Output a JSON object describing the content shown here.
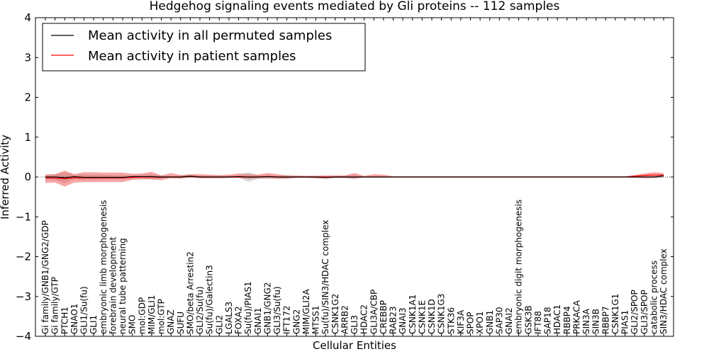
{
  "chart_data": {
    "type": "line",
    "title": "Hedgehog signaling events mediated by Gli proteins -- 112 samples",
    "xlabel": "Cellular Entities",
    "ylabel": "Inferred Activity",
    "ylim": [
      -4,
      4
    ],
    "yticks": [
      -4,
      -3,
      -2,
      -1,
      0,
      1,
      2,
      3,
      4
    ],
    "ytick_labels": [
      "−4",
      "−3",
      "−2",
      "−1",
      "0",
      "1",
      "2",
      "3",
      "4"
    ],
    "legend_position": "top-left",
    "categories": [
      "Gi family/GNB1/GNG2/GDP",
      "Gi family/GTP",
      "PTCH1",
      "GNAO1",
      "GLI1/Su(fu)",
      "GLI1",
      "embryonic limb morphogenesis",
      "forebrain development",
      "neural tube patterning",
      "SMO",
      "mol:GDP",
      "MIM/GLI1",
      "mol:GTP",
      "GNAZ",
      "SUFU",
      "SMO/beta Arrestin2",
      "GLI2/Su(fu)",
      "Su(fu)/Galectin3",
      "GLI2",
      "LGALS3",
      "FOXA2",
      "Su(fu)/PIAS1",
      "GNAI1",
      "GNB1/GNG2",
      "GLI3/Su(fu)",
      "IFT172",
      "GNG2",
      "MIM/GLI2A",
      "MTSS1",
      "Su(fu)/SIN3/HDAC complex",
      "CSNK1G2",
      "ARRB2",
      "GLI3",
      "HDAC2",
      "GLI3A/CBP",
      "CREBBP",
      "RAB23",
      "GNAI3",
      "CSNK1A1",
      "CSNK1E",
      "CSNK1D",
      "CSNK1G3",
      "STK36",
      "KIF3A",
      "SPOP",
      "XPO1",
      "GNB1",
      "SAP30",
      "GNAI2",
      "embryonic digit morphogenesis",
      "GSK3B",
      "IFT88",
      "SAP18",
      "HDAC1",
      "RBBP4",
      "PRKACA",
      "SIN3A",
      "SIN3B",
      "RBBP7",
      "CSNK1G1",
      "PIAS1",
      "GLI2/SPOP",
      "GLI3/SPOP",
      "catabolic process",
      "SIN3/HDAC complex"
    ],
    "series": [
      {
        "name": "Mean activity in all permuted samples",
        "color": "#000000",
        "values": [
          0.0,
          0.0,
          -0.02,
          0.01,
          -0.01,
          -0.01,
          -0.01,
          -0.01,
          -0.01,
          0.01,
          0.01,
          0.01,
          0.0,
          0.0,
          0.0,
          0.02,
          0.0,
          0.0,
          0.0,
          0.0,
          0.01,
          0.0,
          0.0,
          0.01,
          0.0,
          0.0,
          0.0,
          0.0,
          0.0,
          -0.01,
          0.0,
          0.0,
          0.0,
          0.0,
          0.0,
          0.0,
          0.0,
          0.0,
          0.0,
          0.0,
          0.0,
          0.0,
          0.0,
          0.0,
          0.0,
          0.0,
          0.0,
          0.0,
          0.0,
          0.0,
          0.0,
          0.0,
          0.0,
          0.0,
          0.0,
          0.0,
          0.0,
          0.0,
          0.0,
          0.0,
          0.0,
          0.0,
          0.0,
          0.0,
          0.03
        ],
        "band_low": [
          -0.08,
          -0.08,
          -0.15,
          -0.06,
          -0.08,
          -0.07,
          -0.07,
          -0.06,
          -0.06,
          -0.04,
          -0.04,
          -0.06,
          -0.03,
          -0.02,
          -0.03,
          -0.01,
          -0.03,
          -0.03,
          -0.03,
          -0.03,
          -0.02,
          -0.12,
          -0.05,
          -0.04,
          -0.02,
          -0.06,
          -0.02,
          -0.02,
          -0.03,
          -0.06,
          -0.03,
          -0.03,
          -0.06,
          -0.01,
          -0.02,
          -0.02,
          -0.01,
          -0.01,
          -0.01,
          -0.01,
          -0.01,
          -0.01,
          -0.01,
          -0.01,
          -0.01,
          -0.01,
          -0.01,
          -0.01,
          -0.01,
          -0.01,
          -0.01,
          -0.01,
          -0.01,
          -0.01,
          -0.01,
          -0.01,
          -0.01,
          -0.01,
          -0.01,
          -0.01,
          -0.01,
          -0.01,
          -0.02,
          -0.03,
          -0.01
        ],
        "band_high": [
          0.06,
          0.07,
          0.12,
          0.06,
          0.07,
          0.06,
          0.06,
          0.05,
          0.05,
          0.05,
          0.06,
          0.08,
          0.04,
          0.03,
          0.04,
          0.05,
          0.04,
          0.03,
          0.03,
          0.03,
          0.05,
          0.12,
          0.05,
          0.06,
          0.03,
          0.05,
          0.02,
          0.02,
          0.03,
          0.03,
          0.03,
          0.03,
          0.06,
          0.01,
          0.02,
          0.02,
          0.01,
          0.01,
          0.01,
          0.01,
          0.01,
          0.01,
          0.01,
          0.01,
          0.01,
          0.01,
          0.01,
          0.01,
          0.01,
          0.01,
          0.01,
          0.01,
          0.01,
          0.01,
          0.01,
          0.01,
          0.01,
          0.01,
          0.01,
          0.01,
          0.01,
          0.01,
          0.02,
          0.03,
          0.04
        ]
      },
      {
        "name": "Mean activity in patient samples",
        "color": "#ff0000",
        "values": [
          -0.02,
          -0.03,
          -0.04,
          -0.02,
          -0.02,
          -0.02,
          -0.02,
          -0.02,
          -0.02,
          -0.01,
          0.0,
          0.0,
          -0.01,
          0.0,
          0.0,
          0.01,
          0.0,
          0.0,
          0.0,
          0.0,
          0.0,
          0.0,
          0.0,
          0.01,
          0.0,
          0.0,
          0.0,
          0.0,
          0.0,
          0.0,
          0.0,
          0.0,
          0.0,
          0.0,
          0.0,
          0.0,
          0.0,
          0.0,
          0.0,
          0.0,
          0.0,
          0.0,
          0.0,
          0.0,
          0.0,
          0.0,
          0.0,
          0.0,
          0.0,
          0.0,
          0.0,
          0.0,
          0.0,
          0.0,
          0.0,
          0.0,
          0.0,
          0.0,
          0.0,
          0.0,
          0.0,
          0.02,
          0.04,
          0.05,
          0.05
        ],
        "band_low": [
          -0.15,
          -0.14,
          -0.24,
          -0.14,
          -0.13,
          -0.13,
          -0.13,
          -0.13,
          -0.13,
          -0.07,
          -0.06,
          -0.06,
          -0.08,
          -0.03,
          -0.04,
          -0.01,
          -0.03,
          -0.03,
          -0.03,
          -0.02,
          -0.02,
          -0.05,
          -0.03,
          -0.03,
          -0.05,
          -0.03,
          -0.02,
          -0.02,
          -0.03,
          -0.03,
          -0.02,
          -0.02,
          -0.03,
          -0.01,
          -0.01,
          -0.01,
          -0.01,
          -0.01,
          -0.01,
          -0.01,
          -0.01,
          -0.01,
          -0.01,
          -0.01,
          -0.01,
          -0.01,
          -0.01,
          -0.01,
          -0.01,
          -0.01,
          -0.01,
          -0.01,
          -0.01,
          -0.01,
          -0.01,
          -0.01,
          -0.01,
          -0.01,
          -0.01,
          -0.01,
          -0.01,
          -0.02,
          -0.03,
          -0.02,
          0.0
        ],
        "band_high": [
          0.06,
          0.07,
          0.16,
          0.07,
          0.12,
          0.12,
          0.11,
          0.11,
          0.11,
          0.08,
          0.09,
          0.13,
          0.04,
          0.1,
          0.05,
          0.07,
          0.07,
          0.06,
          0.05,
          0.06,
          0.09,
          0.07,
          0.06,
          0.1,
          0.07,
          0.04,
          0.04,
          0.03,
          0.03,
          0.04,
          0.04,
          0.04,
          0.1,
          0.03,
          0.07,
          0.06,
          0.02,
          0.02,
          0.02,
          0.02,
          0.02,
          0.02,
          0.02,
          0.02,
          0.02,
          0.02,
          0.02,
          0.02,
          0.02,
          0.02,
          0.02,
          0.02,
          0.02,
          0.02,
          0.02,
          0.02,
          0.02,
          0.02,
          0.02,
          0.02,
          0.02,
          0.05,
          0.09,
          0.12,
          0.1
        ]
      }
    ]
  }
}
